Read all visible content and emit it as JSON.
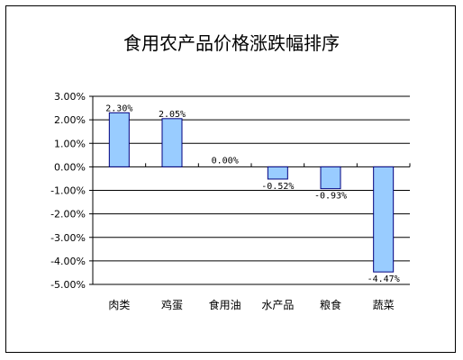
{
  "chart_data": {
    "type": "bar",
    "title": "食用农产品价格涨跌幅排序",
    "categories": [
      "肉类",
      "鸡蛋",
      "食用油",
      "水产品",
      "粮食",
      "蔬菜"
    ],
    "values": [
      2.3,
      2.05,
      0.0,
      -0.52,
      -0.93,
      -4.47
    ],
    "data_labels": [
      "2.30%",
      "2.05%",
      "0.00%",
      "-0.52%",
      "-0.93%",
      "-4.47%"
    ],
    "ylim": [
      -5.0,
      3.0
    ],
    "y_ticks": [
      3.0,
      2.0,
      1.0,
      0.0,
      -1.0,
      -2.0,
      -3.0,
      -4.0,
      -5.0
    ],
    "y_tick_labels": [
      "3.00%",
      "2.00%",
      "1.00%",
      "0.00%",
      "-1.00%",
      "-2.00%",
      "-3.00%",
      "-4.00%",
      "-5.00%"
    ],
    "xlabel": "",
    "ylabel": "",
    "grid": true,
    "legend": "none",
    "bar_color": "#99CCFF",
    "bar_edge_color": "#000080"
  }
}
